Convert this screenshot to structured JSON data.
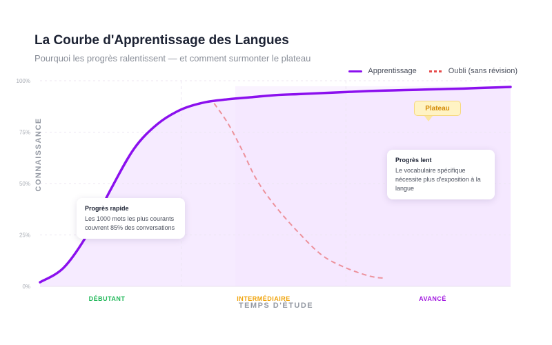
{
  "header": {
    "title": "La Courbe d'Apprentissage des Langues",
    "subtitle": "Pourquoi les progrès ralentissent — et comment surmonter le plateau"
  },
  "legend": {
    "learning": "Apprentissage",
    "forgetting": "Oubli (sans révision)"
  },
  "callouts": {
    "plateau": "Plateau",
    "fast": {
      "title": "Progrès rapide",
      "text": "Les 1000 mots les plus courants couvrent 85% des conversations"
    },
    "slow": {
      "title": "Progrès lent",
      "text": "Le vocabulaire spécifique nécessite plus d'exposition à la langue"
    }
  },
  "phases": [
    {
      "label": "DÉBUTANT",
      "color": "#22b85a"
    },
    {
      "label": "INTERMÉDIAIRE",
      "color": "#f0a30a"
    },
    {
      "label": "AVANCÉ",
      "color": "#a218e0"
    }
  ],
  "colors": {
    "learning": "#8b10ee",
    "forgetting": "#e64a4a",
    "fill": "#f3e4ff"
  },
  "chart_data": {
    "type": "line",
    "title": "La Courbe d'Apprentissage des Langues",
    "xlabel": "TEMPS D'ÉTUDE",
    "ylabel": "CONNAISSANCE",
    "ylim": [
      0,
      100
    ],
    "xlim": [
      0,
      100
    ],
    "y_ticks": [
      "0%",
      "25%",
      "50%",
      "75%",
      "100%"
    ],
    "x_categories": [
      "DÉBUTANT",
      "INTERMÉDIAIRE",
      "AVANCÉ"
    ],
    "grid": true,
    "legend_position": "top-right",
    "series": [
      {
        "name": "Apprentissage",
        "style": "solid",
        "x": [
          0,
          5,
          10,
          15,
          20,
          25,
          30,
          35,
          40,
          45,
          50,
          55,
          60,
          65,
          70,
          75,
          80,
          85,
          90,
          95,
          100
        ],
        "y": [
          2,
          9,
          25,
          47,
          67,
          79,
          86,
          89.5,
          91,
          92,
          93,
          93.5,
          94,
          94.5,
          95,
          95.3,
          95.6,
          95.9,
          96.2,
          96.6,
          97
        ]
      },
      {
        "name": "Oubli (sans révision)",
        "style": "dashed",
        "x": [
          37,
          40,
          43,
          46,
          50,
          55,
          60,
          65,
          70,
          73
        ],
        "y": [
          89,
          79,
          66,
          52,
          39,
          26,
          15,
          9,
          5,
          4
        ]
      }
    ]
  }
}
